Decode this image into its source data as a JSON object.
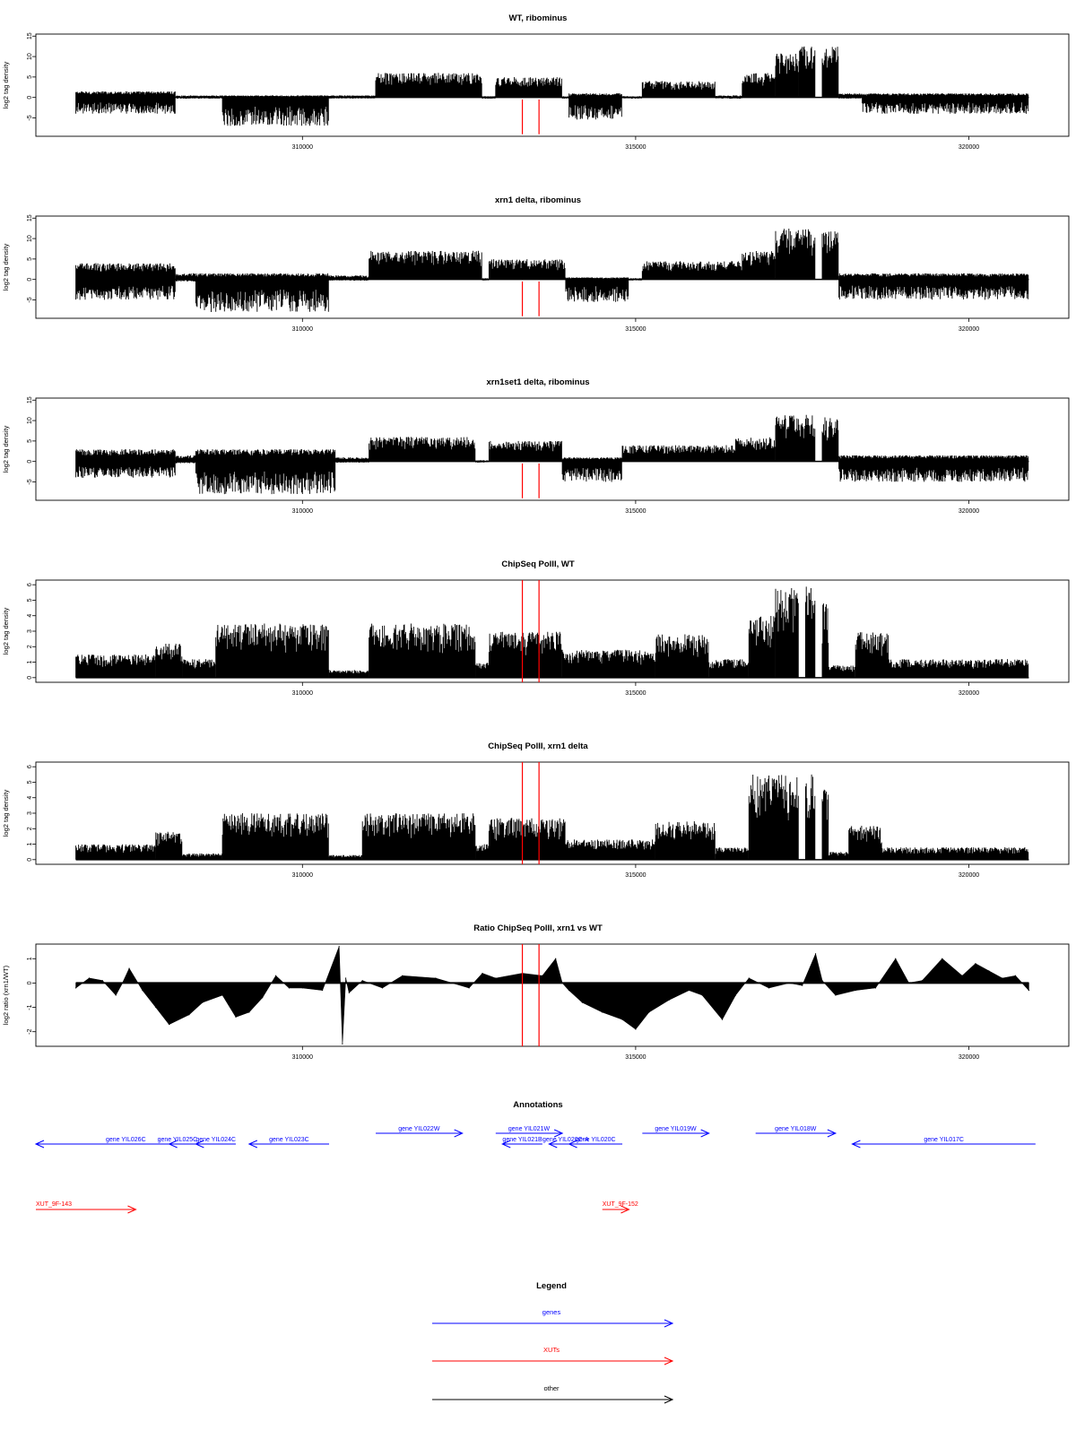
{
  "chart_data": [
    {
      "type": "bar",
      "title": "WT, ribominus",
      "ylabel": "log2 tag density",
      "xlabel": "",
      "xlim": [
        306000,
        321500
      ],
      "ylim": [
        -9.5,
        15.5
      ],
      "yticks": [
        -5,
        0,
        5,
        10,
        15
      ],
      "xticks": [
        310000,
        315000,
        320000
      ],
      "markers": [
        313300,
        313550
      ],
      "profile": [
        {
          "x0": 306600,
          "x1": 308100,
          "lo": -4,
          "hi": 1.5
        },
        {
          "x0": 308100,
          "x1": 308800,
          "lo": -0.3,
          "hi": 0.5
        },
        {
          "x0": 308800,
          "x1": 310400,
          "lo": -7,
          "hi": 0.5
        },
        {
          "x0": 310400,
          "x1": 311100,
          "lo": -0.3,
          "hi": 0.5
        },
        {
          "x0": 311100,
          "x1": 312700,
          "lo": 0,
          "hi": 6
        },
        {
          "x0": 312700,
          "x1": 312900,
          "lo": -0.3,
          "hi": 0.3
        },
        {
          "x0": 312900,
          "x1": 313900,
          "lo": 0,
          "hi": 5
        },
        {
          "x0": 313900,
          "x1": 314000,
          "lo": -0.3,
          "hi": 0.3
        },
        {
          "x0": 314000,
          "x1": 314800,
          "lo": -5.5,
          "hi": 1
        },
        {
          "x0": 314800,
          "x1": 315100,
          "lo": -0.3,
          "hi": 0.3
        },
        {
          "x0": 315100,
          "x1": 316200,
          "lo": 0,
          "hi": 4
        },
        {
          "x0": 316200,
          "x1": 316600,
          "lo": -0.3,
          "hi": 0.5
        },
        {
          "x0": 316600,
          "x1": 317100,
          "lo": 0,
          "hi": 6
        },
        {
          "x0": 317100,
          "x1": 317450,
          "lo": 0,
          "hi": 11
        },
        {
          "x0": 317450,
          "x1": 317700,
          "lo": 0,
          "hi": 12.5
        },
        {
          "x0": 317800,
          "x1": 318050,
          "lo": 0,
          "hi": 12.5
        },
        {
          "x0": 318050,
          "x1": 318400,
          "lo": -0.3,
          "hi": 1
        },
        {
          "x0": 318400,
          "x1": 320900,
          "lo": -4,
          "hi": 1
        }
      ]
    },
    {
      "type": "bar",
      "title": "xrn1 delta, ribominus",
      "ylabel": "log2 tag density",
      "xlabel": "",
      "xlim": [
        306000,
        321500
      ],
      "ylim": [
        -9.5,
        15.5
      ],
      "yticks": [
        -5,
        0,
        5,
        10,
        15
      ],
      "xticks": [
        310000,
        315000,
        320000
      ],
      "markers": [
        313300,
        313550
      ],
      "profile": [
        {
          "x0": 306600,
          "x1": 308100,
          "lo": -5,
          "hi": 4
        },
        {
          "x0": 308100,
          "x1": 308400,
          "lo": -0.5,
          "hi": 1.5
        },
        {
          "x0": 308400,
          "x1": 310400,
          "lo": -8,
          "hi": 1.5
        },
        {
          "x0": 310400,
          "x1": 311000,
          "lo": -0.3,
          "hi": 1
        },
        {
          "x0": 311000,
          "x1": 312700,
          "lo": 0,
          "hi": 7
        },
        {
          "x0": 312700,
          "x1": 312800,
          "lo": -0.3,
          "hi": 0.3
        },
        {
          "x0": 312800,
          "x1": 313950,
          "lo": 0,
          "hi": 5
        },
        {
          "x0": 313950,
          "x1": 314900,
          "lo": -5.5,
          "hi": 0.5
        },
        {
          "x0": 314900,
          "x1": 315100,
          "lo": -0.3,
          "hi": 0.3
        },
        {
          "x0": 315100,
          "x1": 316600,
          "lo": 0,
          "hi": 4.5
        },
        {
          "x0": 316600,
          "x1": 317100,
          "lo": 0,
          "hi": 7
        },
        {
          "x0": 317100,
          "x1": 317700,
          "lo": 0,
          "hi": 12.5
        },
        {
          "x0": 317800,
          "x1": 318050,
          "lo": 0,
          "hi": 12
        },
        {
          "x0": 318050,
          "x1": 320900,
          "lo": -5,
          "hi": 1.5
        }
      ]
    },
    {
      "type": "bar",
      "title": "xrn1set1 delta, ribominus",
      "ylabel": "log2 tag density",
      "xlabel": "",
      "xlim": [
        306000,
        321500
      ],
      "ylim": [
        -9.5,
        15.5
      ],
      "yticks": [
        -5,
        0,
        5,
        10,
        15
      ],
      "xticks": [
        310000,
        315000,
        320000
      ],
      "markers": [
        313300,
        313550
      ],
      "profile": [
        {
          "x0": 306600,
          "x1": 308100,
          "lo": -4,
          "hi": 3
        },
        {
          "x0": 308100,
          "x1": 308400,
          "lo": -0.5,
          "hi": 1.5
        },
        {
          "x0": 308400,
          "x1": 310500,
          "lo": -8,
          "hi": 3
        },
        {
          "x0": 310500,
          "x1": 311000,
          "lo": -0.3,
          "hi": 1
        },
        {
          "x0": 311000,
          "x1": 312600,
          "lo": 0,
          "hi": 6
        },
        {
          "x0": 312600,
          "x1": 312800,
          "lo": -0.3,
          "hi": 0.3
        },
        {
          "x0": 312800,
          "x1": 313900,
          "lo": 0,
          "hi": 5
        },
        {
          "x0": 313900,
          "x1": 314800,
          "lo": -5,
          "hi": 1
        },
        {
          "x0": 314800,
          "x1": 316500,
          "lo": 0,
          "hi": 4
        },
        {
          "x0": 316500,
          "x1": 317100,
          "lo": 0,
          "hi": 6
        },
        {
          "x0": 317100,
          "x1": 317700,
          "lo": 0,
          "hi": 11.5
        },
        {
          "x0": 317800,
          "x1": 318050,
          "lo": 0,
          "hi": 11
        },
        {
          "x0": 318050,
          "x1": 320900,
          "lo": -5,
          "hi": 1.5
        }
      ]
    },
    {
      "type": "bar",
      "title": "ChipSeq PolII, WT",
      "ylabel": "log2 tag density",
      "xlabel": "",
      "xlim": [
        306000,
        321500
      ],
      "ylim": [
        -0.3,
        6.3
      ],
      "yticks": [
        0,
        1,
        2,
        3,
        4,
        5,
        6
      ],
      "xticks": [
        310000,
        315000,
        320000
      ],
      "markers": [
        313300,
        313550
      ],
      "profile": [
        {
          "x0": 306600,
          "x1": 307800,
          "lo": 0,
          "hi": 1.5
        },
        {
          "x0": 307800,
          "x1": 308200,
          "lo": 0,
          "hi": 2.2
        },
        {
          "x0": 308200,
          "x1": 308700,
          "lo": 0,
          "hi": 1.2
        },
        {
          "x0": 308700,
          "x1": 310400,
          "lo": 0,
          "hi": 3.5
        },
        {
          "x0": 310400,
          "x1": 311000,
          "lo": 0,
          "hi": 0.5
        },
        {
          "x0": 311000,
          "x1": 312600,
          "lo": 0,
          "hi": 3.5
        },
        {
          "x0": 312600,
          "x1": 312800,
          "lo": 0,
          "hi": 1
        },
        {
          "x0": 312800,
          "x1": 313900,
          "lo": 0,
          "hi": 3
        },
        {
          "x0": 313900,
          "x1": 315300,
          "lo": 0,
          "hi": 1.8
        },
        {
          "x0": 315300,
          "x1": 316100,
          "lo": 0,
          "hi": 2.8
        },
        {
          "x0": 316100,
          "x1": 316700,
          "lo": 0,
          "hi": 1.2
        },
        {
          "x0": 316700,
          "x1": 317100,
          "lo": 0,
          "hi": 4
        },
        {
          "x0": 317100,
          "x1": 317450,
          "lo": 0,
          "hi": 5.8
        },
        {
          "x0": 317550,
          "x1": 317700,
          "lo": 0,
          "hi": 6
        },
        {
          "x0": 317800,
          "x1": 317900,
          "lo": 0,
          "hi": 4.8
        },
        {
          "x0": 317900,
          "x1": 318300,
          "lo": 0,
          "hi": 0.8
        },
        {
          "x0": 318300,
          "x1": 318800,
          "lo": 0,
          "hi": 3
        },
        {
          "x0": 318800,
          "x1": 320900,
          "lo": 0,
          "hi": 1.2
        }
      ]
    },
    {
      "type": "bar",
      "title": "ChipSeq PolII, xrn1 delta",
      "ylabel": "log2 tag density",
      "xlabel": "",
      "xlim": [
        306000,
        321500
      ],
      "ylim": [
        -0.3,
        6.3
      ],
      "yticks": [
        0,
        1,
        2,
        3,
        4,
        5,
        6
      ],
      "xticks": [
        310000,
        315000,
        320000
      ],
      "markers": [
        313300,
        313550
      ],
      "profile": [
        {
          "x0": 306600,
          "x1": 307800,
          "lo": 0,
          "hi": 1
        },
        {
          "x0": 307800,
          "x1": 308200,
          "lo": 0,
          "hi": 1.8
        },
        {
          "x0": 308200,
          "x1": 308800,
          "lo": 0,
          "hi": 0.4
        },
        {
          "x0": 308800,
          "x1": 310400,
          "lo": 0,
          "hi": 3
        },
        {
          "x0": 310400,
          "x1": 310900,
          "lo": 0,
          "hi": 0.3
        },
        {
          "x0": 310900,
          "x1": 312600,
          "lo": 0,
          "hi": 3
        },
        {
          "x0": 312600,
          "x1": 312800,
          "lo": 0,
          "hi": 1
        },
        {
          "x0": 312800,
          "x1": 313950,
          "lo": 0,
          "hi": 2.7
        },
        {
          "x0": 313950,
          "x1": 315300,
          "lo": 0,
          "hi": 1.3
        },
        {
          "x0": 315300,
          "x1": 316200,
          "lo": 0,
          "hi": 2.5
        },
        {
          "x0": 316200,
          "x1": 316700,
          "lo": 0,
          "hi": 0.8
        },
        {
          "x0": 316700,
          "x1": 317450,
          "lo": 0,
          "hi": 5.5
        },
        {
          "x0": 317550,
          "x1": 317700,
          "lo": 0,
          "hi": 5.6
        },
        {
          "x0": 317800,
          "x1": 317900,
          "lo": 0,
          "hi": 4.6
        },
        {
          "x0": 317900,
          "x1": 318200,
          "lo": 0,
          "hi": 0.5
        },
        {
          "x0": 318200,
          "x1": 318700,
          "lo": 0,
          "hi": 2.2
        },
        {
          "x0": 318700,
          "x1": 320900,
          "lo": 0,
          "hi": 0.8
        }
      ]
    },
    {
      "type": "area",
      "title": "Ratio ChipSeq PolII, xrn1 vs WT",
      "ylabel": "log2 ratio (xrn1/WT)",
      "xlabel": "",
      "xlim": [
        306000,
        321500
      ],
      "ylim": [
        -2.6,
        1.6
      ],
      "yticks": [
        -2,
        -1,
        0,
        1
      ],
      "xticks": [
        310000,
        315000,
        320000
      ],
      "markers": [
        313300,
        313550
      ],
      "x": [
        306600,
        306800,
        307000,
        307200,
        307300,
        307400,
        307600,
        307800,
        308000,
        308300,
        308500,
        308800,
        309000,
        309200,
        309400,
        309600,
        309800,
        310000,
        310300,
        310550,
        310600,
        310650,
        310700,
        310900,
        311200,
        311500,
        312000,
        312500,
        312700,
        312900,
        313300,
        313600,
        313800,
        313900,
        314000,
        314200,
        314500,
        314800,
        315000,
        315200,
        315500,
        315800,
        316000,
        316300,
        316500,
        316700,
        317000,
        317300,
        317500,
        317700,
        317800,
        318000,
        318300,
        318600,
        318900,
        319100,
        319300,
        319600,
        319900,
        320100,
        320300,
        320500,
        320700,
        320900
      ],
      "y": [
        -0.2,
        0.2,
        0.1,
        -0.5,
        0,
        0.6,
        -0.3,
        -1,
        -1.7,
        -1.3,
        -0.8,
        -0.5,
        -1.4,
        -1.2,
        -0.6,
        0.3,
        -0.2,
        -0.2,
        -0.3,
        1.5,
        -2.5,
        0.2,
        -0.4,
        0.1,
        -0.2,
        0.3,
        0.2,
        -0.2,
        0.4,
        0.2,
        0.4,
        0.3,
        1,
        0,
        -0.3,
        -0.8,
        -1.2,
        -1.5,
        -1.9,
        -1.2,
        -0.7,
        -0.3,
        -0.5,
        -1.5,
        -0.5,
        0.2,
        -0.2,
        0,
        -0.1,
        1.2,
        0.1,
        -0.5,
        -0.3,
        -0.2,
        1,
        0,
        0.1,
        1,
        0.3,
        0.8,
        0.5,
        0.2,
        0.3,
        -0.3
      ]
    }
  ],
  "annotations": {
    "title": "Annotations",
    "xlim": [
      306000,
      321500
    ],
    "genes": [
      {
        "label": "gene YIL026C",
        "start": 306000,
        "end": 308700,
        "strand": "-",
        "row": 1
      },
      {
        "label": "gene YIL025C",
        "start": 308000,
        "end": 308250,
        "strand": "-",
        "row": 1
      },
      {
        "label": "gene YIL024C",
        "start": 308400,
        "end": 309000,
        "strand": "-",
        "row": 1
      },
      {
        "label": "gene YIL023C",
        "start": 309200,
        "end": 310400,
        "strand": "-",
        "row": 1
      },
      {
        "label": "gene YIL022W",
        "start": 311100,
        "end": 312400,
        "strand": "+",
        "row": 0
      },
      {
        "label": "gene YIL021W",
        "start": 312900,
        "end": 313900,
        "strand": "+",
        "row": 0
      },
      {
        "label": "gene YIL021B",
        "start": 313000,
        "end": 313600,
        "strand": "-",
        "row": 1
      },
      {
        "label": "gene YIL020C-A",
        "start": 313700,
        "end": 314200,
        "strand": "-",
        "row": 1
      },
      {
        "label": "gene YIL020C",
        "start": 314000,
        "end": 314800,
        "strand": "-",
        "row": 1
      },
      {
        "label": "gene YIL019W",
        "start": 315100,
        "end": 316100,
        "strand": "+",
        "row": 0
      },
      {
        "label": "gene YIL018W",
        "start": 316800,
        "end": 318000,
        "strand": "+",
        "row": 0
      },
      {
        "label": "gene YIL017C",
        "start": 318250,
        "end": 321000,
        "strand": "-",
        "row": 1
      }
    ],
    "xuts": [
      {
        "label": "XUT_9F-143",
        "start": 306000,
        "end": 307500,
        "strand": "+"
      },
      {
        "label": "XUT_9F-152",
        "start": 314500,
        "end": 314900,
        "strand": "+"
      }
    ]
  },
  "legend": {
    "title": "Legend",
    "items": [
      {
        "label": "genes",
        "color": "#0000ff"
      },
      {
        "label": "XUTs",
        "color": "#ff0000"
      },
      {
        "label": "other",
        "color": "#000000"
      }
    ]
  },
  "colors": {
    "gene": "#0000ff",
    "xut": "#ff0000",
    "other": "#000000",
    "marker": "#ff0000",
    "bars": "#000000"
  }
}
